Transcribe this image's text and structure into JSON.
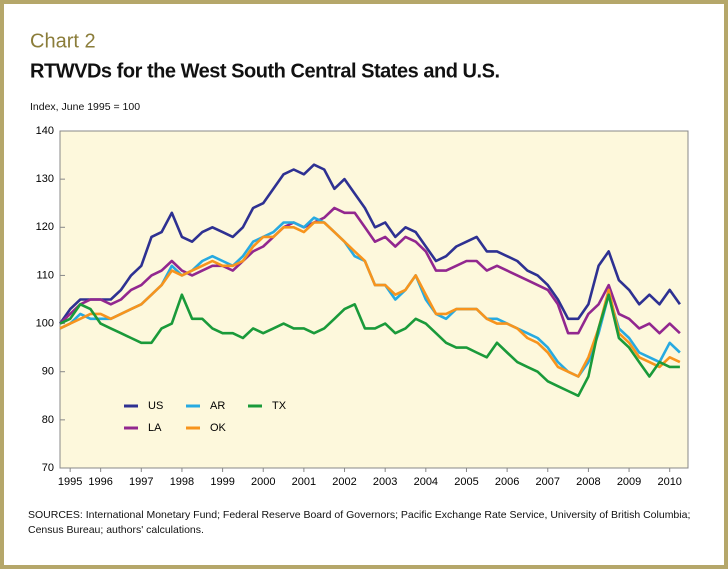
{
  "chart_data": {
    "type": "line",
    "kicker": "Chart 2",
    "title": "RTWVDs for the West South Central States and U.S.",
    "y_label": "Index, June 1995 = 100",
    "source": "SOURCES: International Monetary Fund; Federal Reserve Board of Governors; Pacific Exchange Rate Service, University of British Columbia; Census Bureau; authors' calculations.",
    "x": [
      1995.5,
      1995.75,
      1996,
      1996.25,
      1996.5,
      1996.75,
      1997,
      1997.25,
      1997.5,
      1997.75,
      1998,
      1998.25,
      1998.5,
      1998.75,
      1999,
      1999.25,
      1999.5,
      1999.75,
      2000,
      2000.25,
      2000.5,
      2000.75,
      2001,
      2001.25,
      2001.5,
      2001.75,
      2002,
      2002.25,
      2002.5,
      2002.75,
      2003,
      2003.25,
      2003.5,
      2003.75,
      2004,
      2004.25,
      2004.5,
      2004.75,
      2005,
      2005.25,
      2005.5,
      2005.75,
      2006,
      2006.25,
      2006.5,
      2006.75,
      2007,
      2007.25,
      2007.5,
      2007.75,
      2008,
      2008.25,
      2008.5,
      2008.75,
      2009,
      2009.25,
      2009.5,
      2009.75,
      2010,
      2010.25,
      2010.5,
      2010.75
    ],
    "series": [
      {
        "name": "US",
        "color": "#2e3192",
        "values": [
          100,
          103,
          105,
          105,
          105,
          105,
          107,
          110,
          112,
          118,
          119,
          123,
          118,
          117,
          119,
          120,
          119,
          118,
          120,
          124,
          125,
          128,
          131,
          132,
          131,
          133,
          132,
          128,
          130,
          127,
          124,
          120,
          121,
          118,
          120,
          119,
          116,
          113,
          114,
          116,
          117,
          118,
          115,
          115,
          114,
          113,
          111,
          110,
          108,
          105,
          101,
          101,
          104,
          112,
          115,
          109,
          107,
          104,
          106,
          104,
          107,
          104
        ]
      },
      {
        "name": "LA",
        "color": "#92278f",
        "values": [
          100,
          102,
          104,
          105,
          105,
          104,
          105,
          107,
          108,
          110,
          111,
          113,
          111,
          110,
          111,
          112,
          112,
          111,
          113,
          115,
          116,
          118,
          120,
          121,
          120,
          121,
          122,
          124,
          123,
          123,
          120,
          117,
          118,
          116,
          118,
          117,
          115,
          111,
          111,
          112,
          113,
          113,
          111,
          112,
          111,
          110,
          109,
          108,
          107,
          104,
          98,
          98,
          102,
          104,
          108,
          102,
          101,
          99,
          100,
          98,
          100,
          98
        ]
      },
      {
        "name": "AR",
        "color": "#27aae1",
        "values": [
          99,
          100,
          102,
          101,
          101,
          101,
          102,
          103,
          104,
          106,
          108,
          112,
          110,
          111,
          113,
          114,
          113,
          112,
          114,
          117,
          118,
          119,
          121,
          121,
          120,
          122,
          121,
          119,
          117,
          114,
          113,
          108,
          108,
          105,
          107,
          110,
          105,
          102,
          101,
          103,
          103,
          103,
          101,
          101,
          100,
          99,
          98,
          97,
          95,
          92,
          90,
          89,
          92,
          98,
          106,
          99,
          97,
          94,
          93,
          92,
          96,
          94
        ]
      },
      {
        "name": "OK",
        "color": "#f7941d",
        "values": [
          99,
          100,
          101,
          102,
          102,
          101,
          102,
          103,
          104,
          106,
          108,
          111,
          110,
          111,
          112,
          113,
          112,
          112,
          113,
          116,
          118,
          118,
          120,
          120,
          119,
          121,
          121,
          119,
          117,
          115,
          113,
          108,
          108,
          106,
          107,
          110,
          106,
          102,
          102,
          103,
          103,
          103,
          101,
          100,
          100,
          99,
          97,
          96,
          94,
          91,
          90,
          89,
          93,
          99,
          107,
          98,
          96,
          93,
          92,
          91,
          93,
          92
        ]
      },
      {
        "name": "TX",
        "color": "#1a9a3a",
        "values": [
          100,
          101,
          104,
          103,
          100,
          99,
          98,
          97,
          96,
          96,
          99,
          100,
          106,
          101,
          101,
          99,
          98,
          98,
          97,
          99,
          98,
          99,
          100,
          99,
          99,
          98,
          99,
          101,
          103,
          104,
          99,
          99,
          100,
          98,
          99,
          101,
          100,
          98,
          96,
          95,
          95,
          94,
          93,
          96,
          94,
          92,
          91,
          90,
          88,
          87,
          86,
          85,
          89,
          99,
          106,
          97,
          95,
          92,
          89,
          92,
          91,
          91
        ]
      }
    ],
    "xlim": [
      1995.5,
      2010.95
    ],
    "xticks": [
      {
        "value": 1995.75,
        "label": "1995"
      },
      {
        "value": 1996.5,
        "label": "1996"
      },
      {
        "value": 1997.5,
        "label": "1997"
      },
      {
        "value": 1998.5,
        "label": "1998"
      },
      {
        "value": 1999.5,
        "label": "1999"
      },
      {
        "value": 2000.5,
        "label": "2000"
      },
      {
        "value": 2001.5,
        "label": "2001"
      },
      {
        "value": 2002.5,
        "label": "2002"
      },
      {
        "value": 2003.5,
        "label": "2003"
      },
      {
        "value": 2004.5,
        "label": "2004"
      },
      {
        "value": 2005.5,
        "label": "2005"
      },
      {
        "value": 2006.5,
        "label": "2006"
      },
      {
        "value": 2007.5,
        "label": "2007"
      },
      {
        "value": 2008.5,
        "label": "2008"
      },
      {
        "value": 2009.5,
        "label": "2009"
      },
      {
        "value": 2010.5,
        "label": "2010"
      }
    ],
    "ylim": [
      70,
      140
    ],
    "yticks": [
      70,
      80,
      90,
      100,
      110,
      120,
      130,
      140
    ],
    "grid": false,
    "legend": "lower-left"
  }
}
